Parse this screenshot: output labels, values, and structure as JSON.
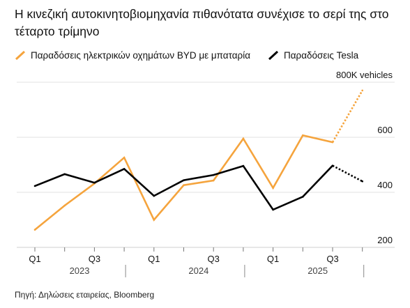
{
  "title": "Η κινεζική αυτοκινητοβιομηχανία πιθανότατα συνέχισε το σερί της στο τέταρτο τρίμηνο",
  "legend": {
    "byd": "Παραδόσεις ηλεκτρικών οχημάτων BYD με μπαταρία",
    "tesla": "Παραδόσεις Tesla"
  },
  "source": "Πηγή: Δηλώσεις εταιρείας, Bloomberg",
  "chart_data": {
    "type": "line",
    "x": [
      "2023 Q1",
      "2023 Q2",
      "2023 Q3",
      "2023 Q4",
      "2024 Q1",
      "2024 Q2",
      "2024 Q3",
      "2024 Q4",
      "2025 Q1",
      "2025 Q2",
      "2025 Q3",
      "2025 Q4"
    ],
    "x_tick_labels": [
      "Q1",
      "",
      "Q3",
      "",
      "Q1",
      "",
      "Q3",
      "",
      "Q1",
      "",
      "Q3",
      ""
    ],
    "year_labels": [
      "2023",
      "2024",
      "2025"
    ],
    "y_ticks": [
      200,
      400,
      600,
      800
    ],
    "y_tick_labels": [
      "200",
      "400",
      "600",
      "800K vehicles"
    ],
    "ylim": [
      200,
      800
    ],
    "series": [
      {
        "name": "Παραδόσεις ηλεκτρικών οχημάτων BYD με μπαταρία",
        "color": "#F5A43D",
        "values": [
          264,
          352,
          432,
          526,
          300,
          426,
          443,
          595,
          416,
          607,
          582,
          770
        ],
        "estimated_from_index": 10
      },
      {
        "name": "Παραδόσεις Tesla",
        "color": "#000000",
        "values": [
          423,
          466,
          435,
          485,
          387,
          444,
          463,
          496,
          337,
          384,
          497,
          440
        ],
        "estimated_from_index": 10
      }
    ],
    "grid": true,
    "legend_position": "top"
  }
}
